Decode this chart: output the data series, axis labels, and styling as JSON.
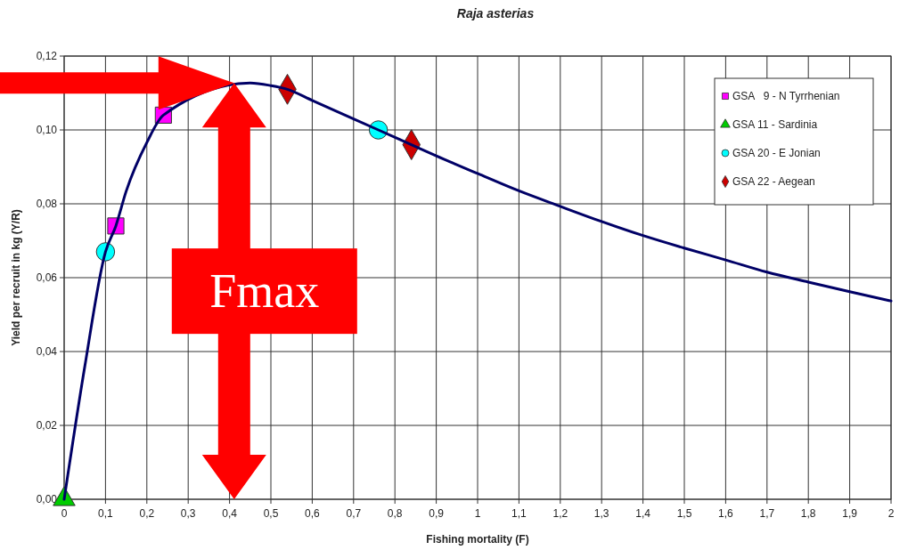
{
  "chart_data": {
    "type": "line",
    "title": "Raja asterias",
    "xlabel": "Fishing mortality (F)",
    "ylabel": "Yield per recruit in kg (Y/R)",
    "xlim": [
      0,
      2
    ],
    "ylim": [
      0,
      0.12
    ],
    "xticks": [
      {
        "value": 0,
        "label": "0"
      },
      {
        "value": 0.1,
        "label": "0,1"
      },
      {
        "value": 0.2,
        "label": "0,2"
      },
      {
        "value": 0.3,
        "label": "0,3"
      },
      {
        "value": 0.4,
        "label": "0,4"
      },
      {
        "value": 0.5,
        "label": "0,5"
      },
      {
        "value": 0.6,
        "label": "0,6"
      },
      {
        "value": 0.7,
        "label": "0,7"
      },
      {
        "value": 0.8,
        "label": "0,8"
      },
      {
        "value": 0.9,
        "label": "0,9"
      },
      {
        "value": 1,
        "label": "1"
      },
      {
        "value": 1.1,
        "label": "1,1"
      },
      {
        "value": 1.2,
        "label": "1,2"
      },
      {
        "value": 1.3,
        "label": "1,3"
      },
      {
        "value": 1.4,
        "label": "1,4"
      },
      {
        "value": 1.5,
        "label": "1,5"
      },
      {
        "value": 1.6,
        "label": "1,6"
      },
      {
        "value": 1.7,
        "label": "1,7"
      },
      {
        "value": 1.8,
        "label": "1,8"
      },
      {
        "value": 1.9,
        "label": "1,9"
      },
      {
        "value": 2,
        "label": "2"
      }
    ],
    "yticks": [
      {
        "value": 0,
        "label": "0,00"
      },
      {
        "value": 0.02,
        "label": "0,02"
      },
      {
        "value": 0.04,
        "label": "0,04"
      },
      {
        "value": 0.06,
        "label": "0,06"
      },
      {
        "value": 0.08,
        "label": "0,08"
      },
      {
        "value": 0.1,
        "label": "0,10"
      },
      {
        "value": 0.12,
        "label": "0,12"
      }
    ],
    "grid": true,
    "legend": "top right",
    "series": [
      {
        "color": "#000066",
        "marker": "none",
        "x": [
          0,
          0.05,
          0.1,
          0.125,
          0.15,
          0.2,
          0.24,
          0.3,
          0.35,
          0.4,
          0.45,
          0.5,
          0.54,
          0.6,
          0.7,
          0.76,
          0.84,
          0.9,
          1.0,
          1.1,
          1.2,
          1.3,
          1.4,
          1.5,
          1.6,
          1.7,
          1.8,
          1.9,
          2.0
        ],
        "values": [
          0,
          0.036,
          0.067,
          0.074,
          0.0834,
          0.0966,
          0.104,
          null,
          null,
          null,
          0.1127,
          0.112,
          0.111,
          0.108,
          0.103,
          0.1,
          0.096,
          0.093,
          0.0882,
          0.0835,
          0.0793,
          0.0752,
          0.0714,
          0.068,
          0.0648,
          0.0615,
          0.0588,
          0.0562,
          0.0537
        ]
      },
      {
        "type": "scatter",
        "name": "GSA   9 - N Tyrrhenian",
        "color": "#ff00ff",
        "marker": "square",
        "x": [
          0.125,
          0.24
        ],
        "values": [
          0.074,
          0.104
        ]
      },
      {
        "type": "scatter",
        "name": "GSA 11 - Sardinia",
        "color": "#00cc00",
        "marker": "triangle",
        "x": [
          0
        ],
        "values": [
          0
        ]
      },
      {
        "type": "scatter",
        "name": "GSA 20 - E Jonian",
        "color": "#00ffff",
        "marker": "circle",
        "x": [
          0.1,
          0.76
        ],
        "values": [
          0.067,
          0.1
        ]
      },
      {
        "type": "scatter",
        "name": "GSA 22 - Aegean",
        "color": "#cc0000",
        "marker": "diamond",
        "x": [
          0.54,
          0.84
        ],
        "values": [
          0.111,
          0.096
        ]
      }
    ],
    "annotations": [
      "Fmax"
    ]
  }
}
